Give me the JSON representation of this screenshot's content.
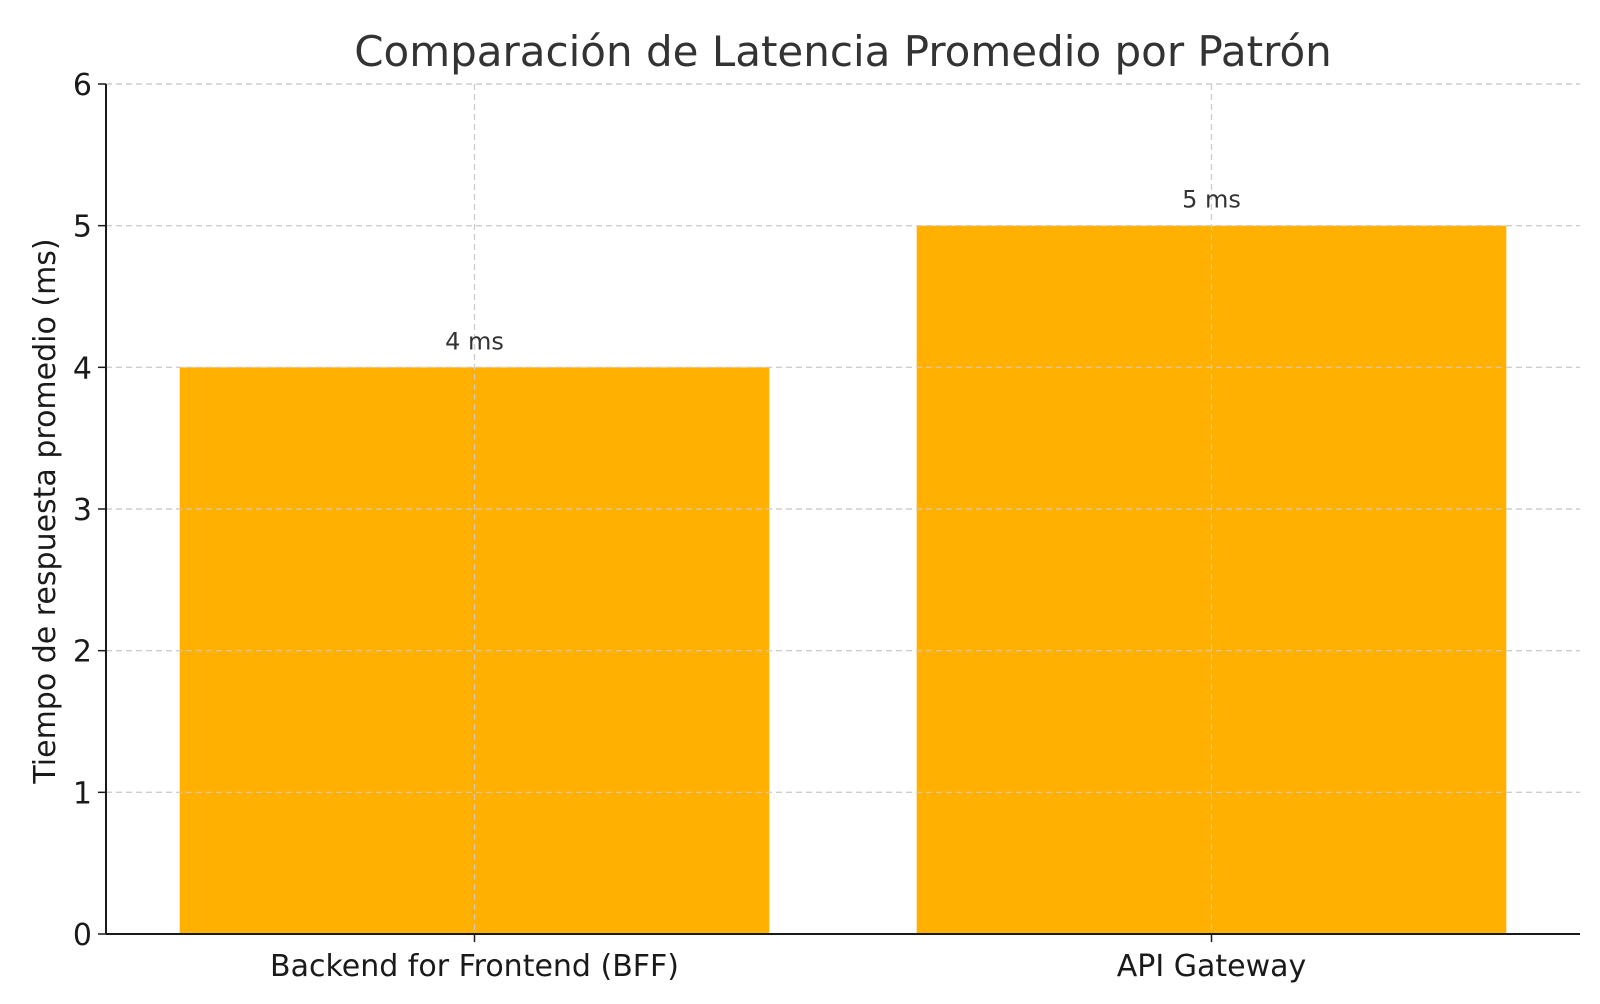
{
  "chart_data": {
    "type": "bar",
    "title": "Comparación de Latencia Promedio por Patrón",
    "xlabel": "",
    "ylabel": "Tiempo de respuesta promedio (ms)",
    "categories": [
      "Backend for Frontend (BFF)",
      "API Gateway"
    ],
    "values": [
      4,
      5
    ],
    "bar_labels": [
      "4 ms",
      "5 ms"
    ],
    "yticks": [
      "0",
      "1",
      "2",
      "3",
      "4",
      "5",
      "6"
    ],
    "ylim": [
      0,
      6
    ],
    "grid": true,
    "legend": "none",
    "colors": {
      "bar": "#FFB000",
      "grid": "#cccccc",
      "axis": "#1a1a1a",
      "title": "#333333"
    }
  }
}
